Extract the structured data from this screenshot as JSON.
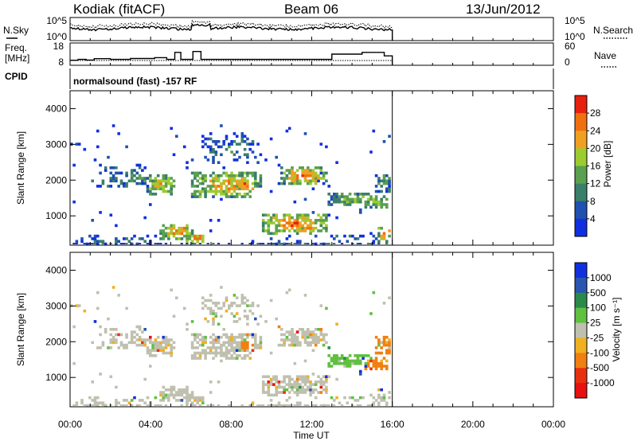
{
  "header": {
    "station": "Kodiak (fitACF)",
    "beam": "Beam 06",
    "date": "13/Jun/2012"
  },
  "noise_panel": {
    "left_label": "N.Sky",
    "left_ticks": [
      "10^5",
      "10^0"
    ],
    "right_ticks": [
      "10^5",
      "10^0"
    ],
    "right_label": "N.Search"
  },
  "freq_panel": {
    "left_label_1": "Freq.",
    "left_label_2": "[MHz]",
    "left_ticks": [
      "18",
      "8"
    ],
    "right_ticks": [
      "60",
      "0"
    ],
    "right_label": "Nave"
  },
  "cpid": {
    "label": "CPID",
    "text": "normalsound (fast) -157 RF"
  },
  "colors": {
    "power": [
      "#1030e0",
      "#2050b0",
      "#3a7f6a",
      "#5aa050",
      "#9ccc30",
      "#f0a020",
      "#f07010",
      "#e82010"
    ],
    "velocity": [
      "#1030e0",
      "#2a55b0",
      "#2a8a4a",
      "#60c040",
      "#c0c0b0",
      "#f0b020",
      "#f08010",
      "#e83010",
      "#e81010"
    ]
  },
  "chart_data": [
    {
      "type": "heatmap",
      "name": "power",
      "xlabel": "",
      "ylabel": "Slant Range [km]",
      "x_range_hours": [
        0,
        24
      ],
      "ylim": [
        180,
        4500
      ],
      "y_ticks": [
        1000,
        2000,
        3000,
        4000
      ],
      "x_ticks": [
        "00:00",
        "04:00",
        "08:00",
        "12:00",
        "16:00",
        "20:00",
        "00:00"
      ],
      "colorbar": {
        "label": "Power [dB]",
        "ticks": [
          28,
          24,
          20,
          16,
          12,
          8,
          4
        ],
        "range": [
          0,
          32
        ]
      },
      "data_end_hour": 16
    },
    {
      "type": "heatmap",
      "name": "velocity",
      "xlabel": "Time UT",
      "ylabel": "Slant Range [km]",
      "x_range_hours": [
        0,
        24
      ],
      "ylim": [
        180,
        4500
      ],
      "y_ticks": [
        1000,
        2000,
        3000,
        4000
      ],
      "x_ticks": [
        "00:00",
        "04:00",
        "08:00",
        "12:00",
        "16:00",
        "20:00",
        "00:00"
      ],
      "colorbar": {
        "label": "Velocity [m s⁻¹]",
        "ticks": [
          1000,
          500,
          100,
          25,
          -25,
          -100,
          -500,
          -1000
        ]
      },
      "data_end_hour": 16
    }
  ]
}
